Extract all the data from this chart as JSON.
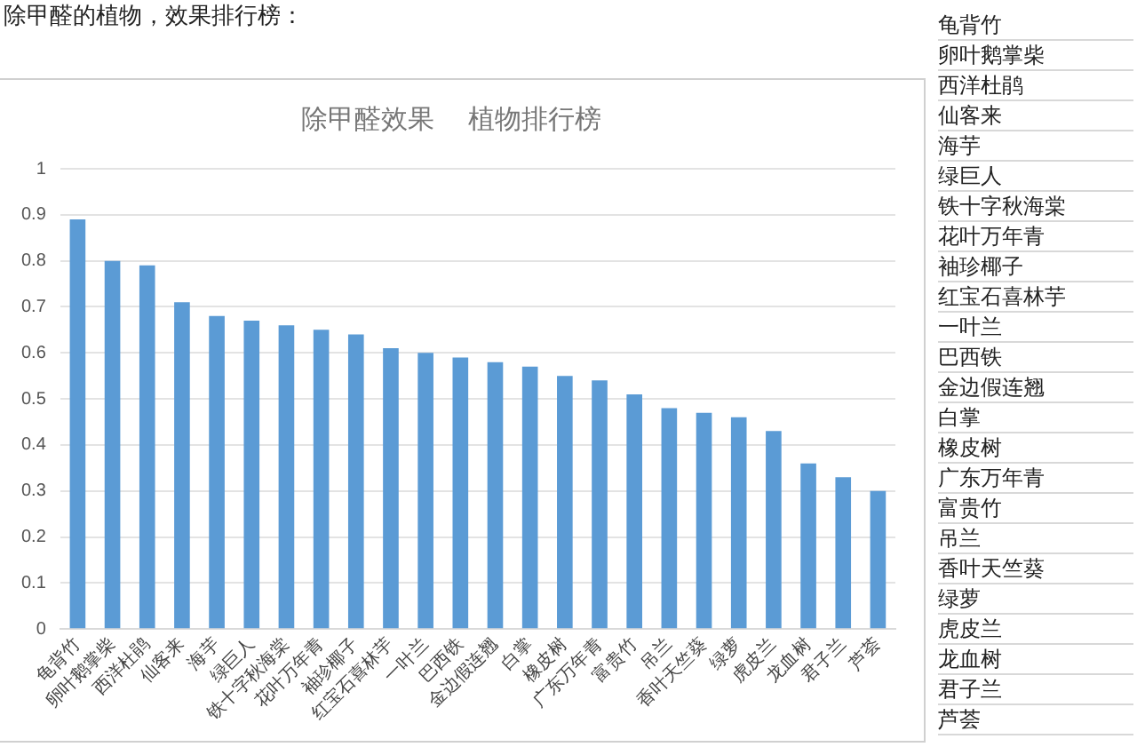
{
  "chart_data": {
    "type": "bar",
    "title": "除甲醛效果    植物排行榜",
    "annotations": [
      "除甲醛的植物，效果排行榜："
    ],
    "categories": [
      "龟背竹",
      "卵叶鹅掌柴",
      "西洋杜鹃",
      "仙客来",
      "海芋",
      "绿巨人",
      "铁十字秋海棠",
      "花叶万年青",
      "袖珍椰子",
      "红宝石喜林芋",
      "一叶兰",
      "巴西铁",
      "金边假连翘",
      "白掌",
      "橡皮树",
      "广东万年青",
      "富贵竹",
      "吊兰",
      "香叶天竺葵",
      "绿萝",
      "虎皮兰",
      "龙血树",
      "君子兰",
      "芦荟"
    ],
    "values": [
      0.89,
      0.8,
      0.79,
      0.71,
      0.68,
      0.67,
      0.66,
      0.65,
      0.64,
      0.61,
      0.6,
      0.59,
      0.58,
      0.57,
      0.55,
      0.54,
      0.51,
      0.48,
      0.47,
      0.46,
      0.43,
      0.36,
      0.33,
      0.3
    ],
    "color": "#5b9bd5",
    "ylim": [
      0,
      1
    ],
    "yticks": [
      0,
      0.1,
      0.2,
      0.3,
      0.4,
      0.5,
      0.6,
      0.7,
      0.8,
      0.9,
      1
    ],
    "grid": "y",
    "legend": false
  }
}
